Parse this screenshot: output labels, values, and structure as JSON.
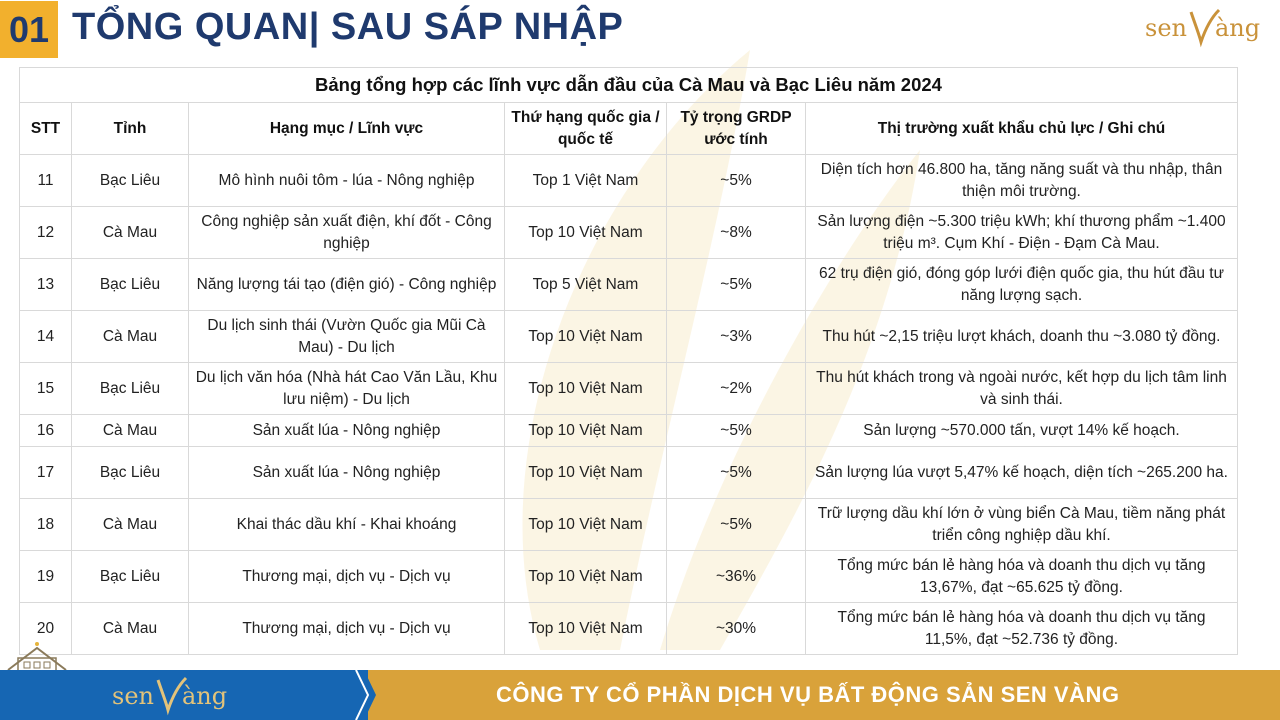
{
  "header": {
    "number": "01",
    "title": "TỔNG QUAN| SAU SÁP NHẬP",
    "logo_text": "senVàng"
  },
  "table": {
    "caption": "Bảng tổng hợp các lĩnh vực dẫn đầu của Cà Mau và Bạc Liêu năm 2024",
    "columns": [
      "STT",
      "Tỉnh",
      "Hạng mục / Lĩnh vực",
      "Thứ hạng quốc gia / quốc tế",
      "Tỷ trọng GRDP ước tính",
      "Thị trường xuất khẩu chủ lực / Ghi chú"
    ],
    "rows": [
      [
        "11",
        "Bạc Liêu",
        "Mô hình nuôi tôm - lúa - Nông nghiệp",
        "Top 1 Việt Nam",
        "~5%",
        "Diện tích hơn 46.800 ha, tăng năng suất và thu nhập, thân thiện môi trường."
      ],
      [
        "12",
        "Cà Mau",
        "Công nghiệp sản xuất điện, khí đốt - Công nghiệp",
        "Top 10 Việt Nam",
        "~8%",
        "Sản lượng điện ~5.300 triệu kWh; khí thương phẩm ~1.400 triệu m³. Cụm Khí - Điện - Đạm Cà Mau."
      ],
      [
        "13",
        "Bạc Liêu",
        "Năng lượng tái tạo (điện gió) - Công nghiệp",
        "Top 5 Việt Nam",
        "~5%",
        "62 trụ điện gió, đóng góp lưới điện quốc gia, thu hút đầu tư năng lượng sạch."
      ],
      [
        "14",
        "Cà Mau",
        "Du lịch sinh thái (Vườn Quốc gia Mũi Cà Mau) - Du lịch",
        "Top 10 Việt Nam",
        "~3%",
        "Thu hút ~2,15 triệu lượt khách, doanh thu ~3.080 tỷ đồng."
      ],
      [
        "15",
        "Bạc Liêu",
        "Du lịch văn hóa (Nhà hát Cao Văn Lầu, Khu lưu niệm) - Du lịch",
        "Top 10 Việt Nam",
        "~2%",
        "Thu hút khách trong và ngoài nước, kết hợp du lịch tâm linh và sinh thái."
      ],
      [
        "16",
        "Cà Mau",
        "Sản xuất lúa - Nông nghiệp",
        "Top 10 Việt Nam",
        "~5%",
        "Sản lượng ~570.000 tấn, vượt 14% kế hoạch."
      ],
      [
        "17",
        "Bạc Liêu",
        "Sản xuất lúa - Nông nghiệp",
        "Top 10 Việt Nam",
        "~5%",
        "Sản lượng lúa vượt 5,47% kế hoạch, diện tích ~265.200 ha."
      ],
      [
        "18",
        "Cà Mau",
        "Khai thác dầu khí - Khai khoáng",
        "Top 10 Việt Nam",
        "~5%",
        "Trữ lượng dầu khí lớn ở vùng biển Cà Mau, tiềm năng phát triển công nghiệp dầu khí."
      ],
      [
        "19",
        "Bạc Liêu",
        "Thương mại, dịch vụ - Dịch vụ",
        "Top 10 Việt Nam",
        "~36%",
        "Tổng mức bán lẻ hàng hóa và doanh thu dịch vụ tăng 13,67%, đạt ~65.625 tỷ đồng."
      ],
      [
        "20",
        "Cà Mau",
        "Thương mại, dịch vụ - Dịch vụ",
        "Top 10 Việt Nam",
        "~30%",
        "Tổng mức bán lẻ hàng hóa và doanh thu dịch vụ tăng 11,5%, đạt ~52.736 tỷ đồng."
      ]
    ]
  },
  "footer": {
    "logo_text": "senVàng",
    "company": "CÔNG TY CỔ PHẦN DỊCH VỤ BẤT ĐỘNG SẢN SEN VÀNG"
  },
  "colors": {
    "navy": "#1f3a6e",
    "gold": "#f2b02d",
    "footer_blue": "#1666b3",
    "footer_gold": "#d9a23a"
  }
}
